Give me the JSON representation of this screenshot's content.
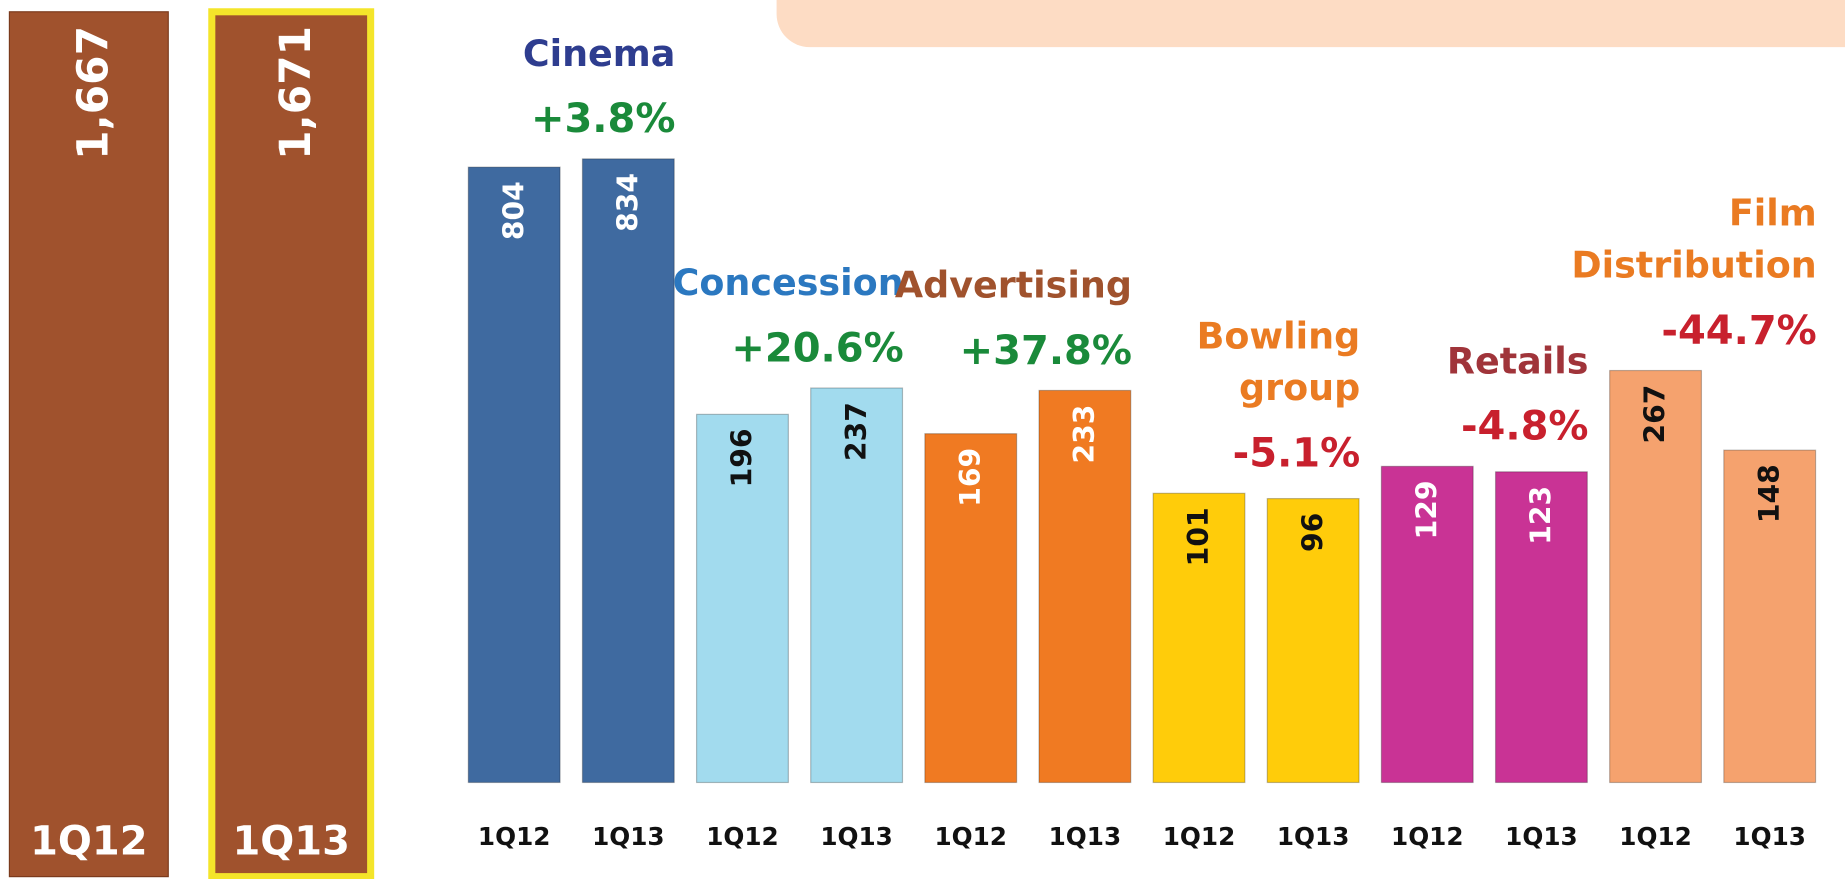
{
  "chart_data": [
    {
      "type": "bar",
      "categories": [
        "1Q12",
        "1Q13"
      ],
      "values": [
        1667,
        1671
      ],
      "value_labels": [
        "1,667",
        "1,671"
      ],
      "color": "#a0522d",
      "highlight_color": "#f4e52a"
    },
    {
      "type": "grouped-bar",
      "groups": [
        {
          "name_lines": [
            "Cinema"
          ],
          "change": "+3.8%",
          "categories": [
            "1Q12",
            "1Q13"
          ],
          "values": [
            804,
            834
          ],
          "color": "#3f6aa0",
          "name_color": "#2e3d8f",
          "change_color": "#1a8a3a",
          "label_color": "#ffffff"
        },
        {
          "name_lines": [
            "Concession"
          ],
          "change": "+20.6%",
          "categories": [
            "1Q12",
            "1Q13"
          ],
          "values": [
            196,
            237
          ],
          "color": "#a2dbee",
          "name_color": "#2b78c0",
          "change_color": "#1a8a3a",
          "label_color": "#111111"
        },
        {
          "name_lines": [
            "Advertising"
          ],
          "change": "+37.8%",
          "categories": [
            "1Q12",
            "1Q13"
          ],
          "values": [
            169,
            233
          ],
          "color": "#f07a22",
          "name_color": "#a0522d",
          "change_color": "#1a8a3a",
          "label_color": "#ffffff"
        },
        {
          "name_lines": [
            "Bowling",
            "group"
          ],
          "change": "-5.1%",
          "categories": [
            "1Q12",
            "1Q13"
          ],
          "values": [
            101,
            96
          ],
          "color": "#ffcc0a",
          "name_color": "#ea7b22",
          "change_color": "#c8202d",
          "label_color": "#111111"
        },
        {
          "name_lines": [
            "Retails"
          ],
          "change": "-4.8%",
          "categories": [
            "1Q12",
            "1Q13"
          ],
          "values": [
            129,
            123
          ],
          "color": "#c93395",
          "name_color": "#a0343a",
          "change_color": "#c8202d",
          "label_color": "#ffffff"
        },
        {
          "name_lines": [
            "Film",
            "Distribution"
          ],
          "change": "-44.7%",
          "categories": [
            "1Q12",
            "1Q13"
          ],
          "values": [
            267,
            148
          ],
          "color": "#f5a26e",
          "name_color": "#ea7b22",
          "change_color": "#c8202d",
          "label_color": "#111111"
        }
      ]
    }
  ]
}
